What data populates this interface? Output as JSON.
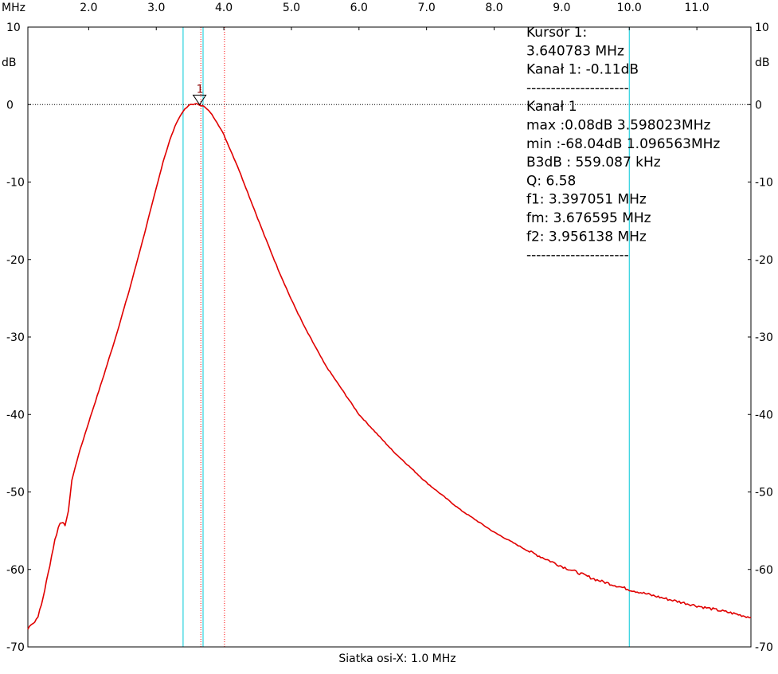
{
  "chart_data": {
    "type": "line",
    "x_unit": "MHz",
    "y_unit": "dB",
    "xlabel": "Siatka osi-X: 1.0 MHz",
    "xlim": [
      1.1,
      11.8
    ],
    "ylim": [
      -70,
      10
    ],
    "x_ticks": [
      {
        "value": 2.0,
        "label": "2.0"
      },
      {
        "value": 3.0,
        "label": "3.0"
      },
      {
        "value": 4.0,
        "label": "4.0"
      },
      {
        "value": 5.0,
        "label": "5.0"
      },
      {
        "value": 6.0,
        "label": "6.0"
      },
      {
        "value": 7.0,
        "label": "7.0"
      },
      {
        "value": 8.0,
        "label": "8.0"
      },
      {
        "value": 9.0,
        "label": "9.0"
      },
      {
        "value": 10.0,
        "label": "10.0"
      },
      {
        "value": 11.0,
        "label": "11.0"
      }
    ],
    "y_ticks": [
      {
        "value": 10,
        "label": "10"
      },
      {
        "value": 0,
        "label": "0"
      },
      {
        "value": -10,
        "label": "-10"
      },
      {
        "value": -20,
        "label": "-20"
      },
      {
        "value": -30,
        "label": "-30"
      },
      {
        "value": -40,
        "label": "-40"
      },
      {
        "value": -50,
        "label": "-50"
      },
      {
        "value": -60,
        "label": "-60"
      },
      {
        "value": -70,
        "label": "-70"
      }
    ],
    "grid": false,
    "reference_line_y": 0,
    "series": [
      {
        "color": "#e00000",
        "points": [
          [
            1.1,
            -67.7
          ],
          [
            1.15,
            -67.0
          ],
          [
            1.2,
            -66.8
          ],
          [
            1.25,
            -66.0
          ],
          [
            1.3,
            -64.6
          ],
          [
            1.35,
            -62.6
          ],
          [
            1.4,
            -60.5
          ],
          [
            1.45,
            -58.3
          ],
          [
            1.5,
            -56.2
          ],
          [
            1.55,
            -54.6
          ],
          [
            1.58,
            -53.9
          ],
          [
            1.62,
            -54.0
          ],
          [
            1.65,
            -54.3
          ],
          [
            1.7,
            -52.5
          ],
          [
            1.75,
            -48.5
          ],
          [
            1.85,
            -45.2
          ],
          [
            2.0,
            -41.0
          ],
          [
            2.2,
            -35.6
          ],
          [
            2.4,
            -30.0
          ],
          [
            2.6,
            -24.0
          ],
          [
            2.8,
            -17.5
          ],
          [
            3.0,
            -10.8
          ],
          [
            3.1,
            -7.4
          ],
          [
            3.2,
            -4.6
          ],
          [
            3.3,
            -2.3
          ],
          [
            3.4,
            -0.8
          ],
          [
            3.5,
            0.0
          ],
          [
            3.6,
            0.08
          ],
          [
            3.7,
            -0.2
          ],
          [
            3.8,
            -1.0
          ],
          [
            3.9,
            -2.3
          ],
          [
            4.0,
            -3.9
          ],
          [
            4.2,
            -7.9
          ],
          [
            4.4,
            -12.4
          ],
          [
            4.6,
            -16.9
          ],
          [
            4.8,
            -21.2
          ],
          [
            5.0,
            -25.2
          ],
          [
            5.2,
            -28.8
          ],
          [
            5.5,
            -33.6
          ],
          [
            6.0,
            -40.0
          ],
          [
            6.5,
            -44.7
          ],
          [
            7.0,
            -48.8
          ],
          [
            7.5,
            -52.3
          ],
          [
            8.0,
            -55.2
          ],
          [
            8.5,
            -57.6
          ],
          [
            9.0,
            -59.6
          ],
          [
            9.5,
            -61.3
          ],
          [
            10.0,
            -62.6
          ],
          [
            10.5,
            -63.7
          ],
          [
            11.0,
            -64.7
          ],
          [
            11.5,
            -65.6
          ],
          [
            11.8,
            -66.2
          ]
        ]
      }
    ],
    "cursor_lines": [
      {
        "x": 3.6595,
        "color": "#ff0000",
        "style": "dotted"
      },
      {
        "x": 4.0095,
        "color": "#ff0000",
        "style": "dotted"
      },
      {
        "x": 3.397051,
        "color": "#00c8d8",
        "style": "solid"
      },
      {
        "x": 3.6925,
        "color": "#00c8d8",
        "style": "solid"
      },
      {
        "x": 10.0,
        "color": "#00c8d8",
        "style": "solid"
      }
    ],
    "marker": {
      "x": 3.640783,
      "y": -0.11,
      "label": "1"
    }
  },
  "axis": {
    "unit_top_left": "MHz",
    "unit_left": "dB",
    "unit_right": "dB"
  },
  "info_lines": [
    "Kursor 1:",
    "3.640783 MHz",
    "Kanał 1: -0.11dB",
    "---------------------",
    "Kanał 1",
    "max :0.08dB 3.598023MHz",
    "min :-68.04dB 1.096563MHz",
    "B3dB : 559.087 kHz",
    "Q: 6.58",
    "f1: 3.397051 MHz",
    "fm: 3.676595 MHz",
    "f2: 3.956138 MHz",
    "---------------------"
  ]
}
